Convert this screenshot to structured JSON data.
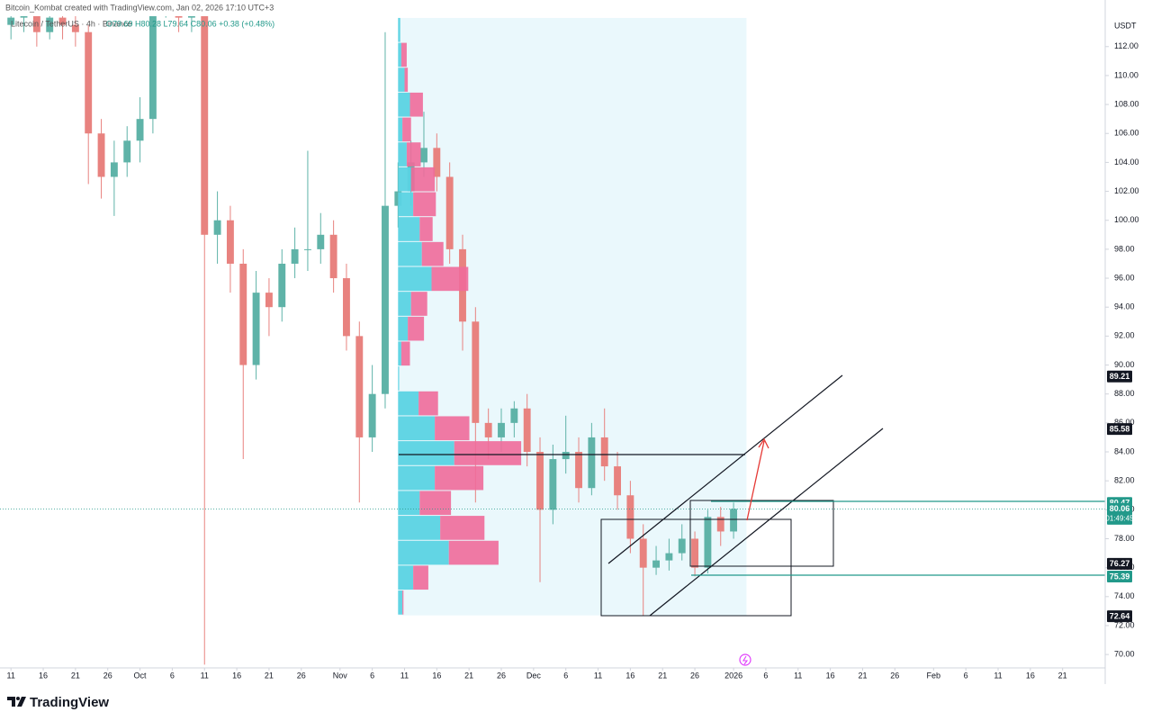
{
  "header": {
    "attribution": "Bitcoin_Kombat created with TradingView.com, Jan 02, 2026 17:10 UTC+3"
  },
  "chart_data": {
    "type": "candlestick",
    "symbol": "Litecoin / TetherUS · 4h · Binance",
    "ohlc_legend": "O79.69 H80.28 L79.64 C80.06 +0.38 (+0.48%)",
    "currency": "USDT",
    "up_color": "#5fb3a8",
    "down_color": "#e8827f",
    "x": [
      0,
      2,
      4,
      6,
      8,
      10,
      12,
      14,
      16,
      18,
      20,
      22,
      24,
      26,
      28,
      30,
      32,
      34,
      36,
      38,
      40,
      42,
      44,
      46,
      48,
      50,
      52,
      54,
      56,
      58,
      60,
      62,
      64,
      66,
      68,
      70,
      72,
      74,
      76,
      78,
      80,
      82,
      84,
      86,
      88,
      90,
      92,
      94,
      96,
      98,
      100,
      102,
      104,
      106,
      108,
      110,
      112
    ],
    "open": [
      113.5,
      114,
      115,
      113,
      114,
      113.5,
      113,
      106,
      103,
      104,
      105.5,
      107,
      115,
      115,
      114,
      115,
      99,
      100,
      97,
      90,
      95,
      94,
      97,
      98,
      98,
      99,
      96,
      92,
      85,
      88,
      101,
      102,
      104,
      105,
      103,
      98,
      93,
      86,
      85,
      86,
      87,
      84,
      80,
      83.5,
      84,
      81.5,
      85,
      83,
      81,
      78,
      76,
      76.5,
      77,
      78,
      76,
      79.5,
      78.5
    ],
    "high": [
      115,
      116,
      115.5,
      115,
      115,
      114.5,
      113.5,
      107,
      105.5,
      106.5,
      108.5,
      116,
      116,
      116,
      116,
      116,
      102,
      101,
      98,
      96.5,
      96,
      98,
      99.5,
      104.8,
      100.5,
      100,
      97,
      93,
      90,
      113,
      104,
      105.5,
      107.5,
      106,
      104,
      99,
      94,
      87,
      87,
      87.5,
      88,
      85,
      84.5,
      86.5,
      85,
      86,
      87,
      84,
      82,
      79,
      77.5,
      78,
      79,
      78.5,
      80,
      80.2,
      80.5
    ],
    "low": [
      112.5,
      113,
      112,
      112.5,
      112.5,
      112,
      102.5,
      101.5,
      100.3,
      103,
      104,
      106,
      114,
      113,
      113,
      69.3,
      97,
      95,
      83.5,
      89,
      92,
      93,
      96,
      96.5,
      97,
      95,
      91,
      80.5,
      84,
      87,
      99.5,
      101,
      103,
      102,
      97,
      91,
      80.5,
      83.5,
      84,
      85,
      83,
      75,
      79,
      82.5,
      80.5,
      81,
      82,
      80,
      77,
      72.7,
      75.5,
      75.8,
      76.5,
      75.4,
      75.6,
      77.5,
      78
    ],
    "close": [
      114,
      115,
      113,
      114,
      113.5,
      113,
      106,
      103,
      104,
      105.5,
      107,
      115,
      115,
      114,
      115,
      99,
      100,
      97,
      90,
      95,
      94,
      97,
      98,
      98,
      99,
      96,
      92,
      85,
      88,
      101,
      102,
      104,
      105,
      103,
      98,
      93,
      86,
      85,
      86,
      87,
      84,
      80,
      83.5,
      84,
      81.5,
      85,
      83,
      81,
      78,
      76,
      76.5,
      77,
      78,
      76,
      79.5,
      78.5,
      80.06
    ],
    "xlim": [
      -1.7,
      169.6
    ],
    "ylim": [
      69.2,
      114.1
    ],
    "grid": false,
    "xticks": [
      {
        "value": 0,
        "label": "11"
      },
      {
        "value": 5,
        "label": "16"
      },
      {
        "value": 10,
        "label": "21"
      },
      {
        "value": 15,
        "label": "26"
      },
      {
        "value": 20,
        "label": "Oct"
      },
      {
        "value": 25,
        "label": "6"
      },
      {
        "value": 30,
        "label": "11"
      },
      {
        "value": 35,
        "label": "16"
      },
      {
        "value": 40,
        "label": "21"
      },
      {
        "value": 45,
        "label": "26"
      },
      {
        "value": 51,
        "label": "Nov"
      },
      {
        "value": 56,
        "label": "6"
      },
      {
        "value": 61,
        "label": "11"
      },
      {
        "value": 66,
        "label": "16"
      },
      {
        "value": 71,
        "label": "21"
      },
      {
        "value": 76,
        "label": "26"
      },
      {
        "value": 81,
        "label": "Dec"
      },
      {
        "value": 86,
        "label": "6"
      },
      {
        "value": 91,
        "label": "11"
      },
      {
        "value": 96,
        "label": "16"
      },
      {
        "value": 101,
        "label": "21"
      },
      {
        "value": 106,
        "label": "26"
      },
      {
        "value": 112,
        "label": "2026"
      },
      {
        "value": 117,
        "label": "6"
      },
      {
        "value": 122,
        "label": "11"
      },
      {
        "value": 127,
        "label": "16"
      },
      {
        "value": 132,
        "label": "21"
      },
      {
        "value": 137,
        "label": "26"
      },
      {
        "value": 143,
        "label": "Feb"
      },
      {
        "value": 148,
        "label": "6"
      },
      {
        "value": 153,
        "label": "11"
      },
      {
        "value": 158,
        "label": "16"
      },
      {
        "value": 163,
        "label": "21"
      }
    ],
    "yticks": [
      {
        "value": 70,
        "label": "70.00"
      },
      {
        "value": 72,
        "label": "72.00"
      },
      {
        "value": 74,
        "label": "74.00"
      },
      {
        "value": 76,
        "label": "76.00"
      },
      {
        "value": 78,
        "label": "78.00"
      },
      {
        "value": 80,
        "label": "80.00"
      },
      {
        "value": 82,
        "label": "82.00"
      },
      {
        "value": 84,
        "label": "84.00"
      },
      {
        "value": 86,
        "label": "86.00"
      },
      {
        "value": 88,
        "label": "88.00"
      },
      {
        "value": 90,
        "label": "90.00"
      },
      {
        "value": 92,
        "label": "92.00"
      },
      {
        "value": 94,
        "label": "94.00"
      },
      {
        "value": 96,
        "label": "96.00"
      },
      {
        "value": 98,
        "label": "98.00"
      },
      {
        "value": 100,
        "label": "100.00"
      },
      {
        "value": 102,
        "label": "102.00"
      },
      {
        "value": 104,
        "label": "104.00"
      },
      {
        "value": 106,
        "label": "106.00"
      },
      {
        "value": 108,
        "label": "108.00"
      },
      {
        "value": 110,
        "label": "110.00"
      },
      {
        "value": 112,
        "label": "112.00"
      }
    ],
    "volume_profile": {
      "x_range": [
        60,
        114
      ],
      "bins": [
        72.7,
        74.42,
        76.14,
        77.86,
        79.58,
        81.3,
        83.02,
        84.74,
        86.46,
        88.18,
        89.9,
        91.62,
        93.34,
        95.06,
        96.78,
        98.5,
        100.22,
        101.94,
        103.66,
        105.38,
        107.1,
        108.82,
        110.54,
        112.26,
        113.98
      ],
      "up": [
        4,
        14,
        47,
        39,
        20,
        34,
        52,
        34,
        19,
        1,
        3,
        9,
        12,
        31,
        22,
        20,
        14,
        12,
        8,
        4,
        11,
        6,
        3,
        2
      ],
      "down": [
        1,
        14,
        46,
        41,
        29,
        45,
        62,
        32,
        18,
        0,
        8,
        15,
        15,
        34,
        20,
        12,
        21,
        22,
        13,
        8,
        12,
        3,
        5,
        0
      ],
      "up_color": "#5bd3e3",
      "down_color": "#f06a9a",
      "shade_color": "#eaf8fc"
    },
    "price_labels": [
      {
        "value": 89.21,
        "color": "#131722"
      },
      {
        "value": 85.58,
        "color": "#131722"
      },
      {
        "value": 80.47,
        "color": "#22998a"
      },
      {
        "value": 80.06,
        "color": "#22998a",
        "countdown": "01:49:45"
      },
      {
        "value": 76.27,
        "color": "#131722"
      },
      {
        "value": 75.39,
        "color": "#22998a"
      },
      {
        "value": 72.64,
        "color": "#131722"
      }
    ]
  },
  "footer": {
    "brand": "TradingView"
  }
}
